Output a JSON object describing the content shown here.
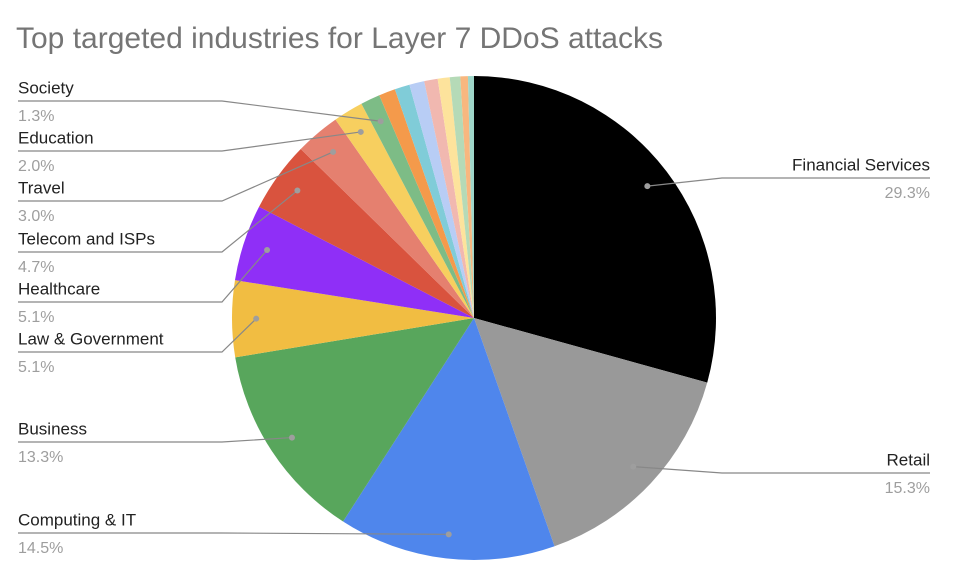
{
  "chart_data": {
    "type": "pie",
    "title": "Top targeted industries for Layer 7 DDoS attacks",
    "categories": [
      "Financial Services",
      "Retail",
      "Computing & IT",
      "Business",
      "Law & Government",
      "Healthcare",
      "Telecom and ISPs",
      "Travel",
      "Education",
      "Society",
      null,
      null,
      null,
      null,
      null,
      null,
      null,
      null
    ],
    "values": [
      29.3,
      15.3,
      14.5,
      13.3,
      5.1,
      5.1,
      4.7,
      3.0,
      2.0,
      1.3,
      1.1,
      1.0,
      1.0,
      0.9,
      0.8,
      0.7,
      0.5,
      0.4
    ],
    "value_labels": [
      "29.3%",
      "15.3%",
      "14.5%",
      "13.3%",
      "5.1%",
      "5.1%",
      "4.7%",
      "3.0%",
      "2.0%",
      "1.3%",
      null,
      null,
      null,
      null,
      null,
      null,
      null,
      null
    ],
    "colors": [
      "#000000",
      "#999999",
      "#4f86ec",
      "#58a65c",
      "#f1bd42",
      "#8f2ff7",
      "#d9533e",
      "#e5806f",
      "#f7cf5f",
      "#7dbc86",
      "#f49a4b",
      "#80ccd8",
      "#b8cdf5",
      "#f1b8b0",
      "#fde39c",
      "#b5dab7",
      "#f8b77f",
      "#9fd6c9"
    ]
  }
}
